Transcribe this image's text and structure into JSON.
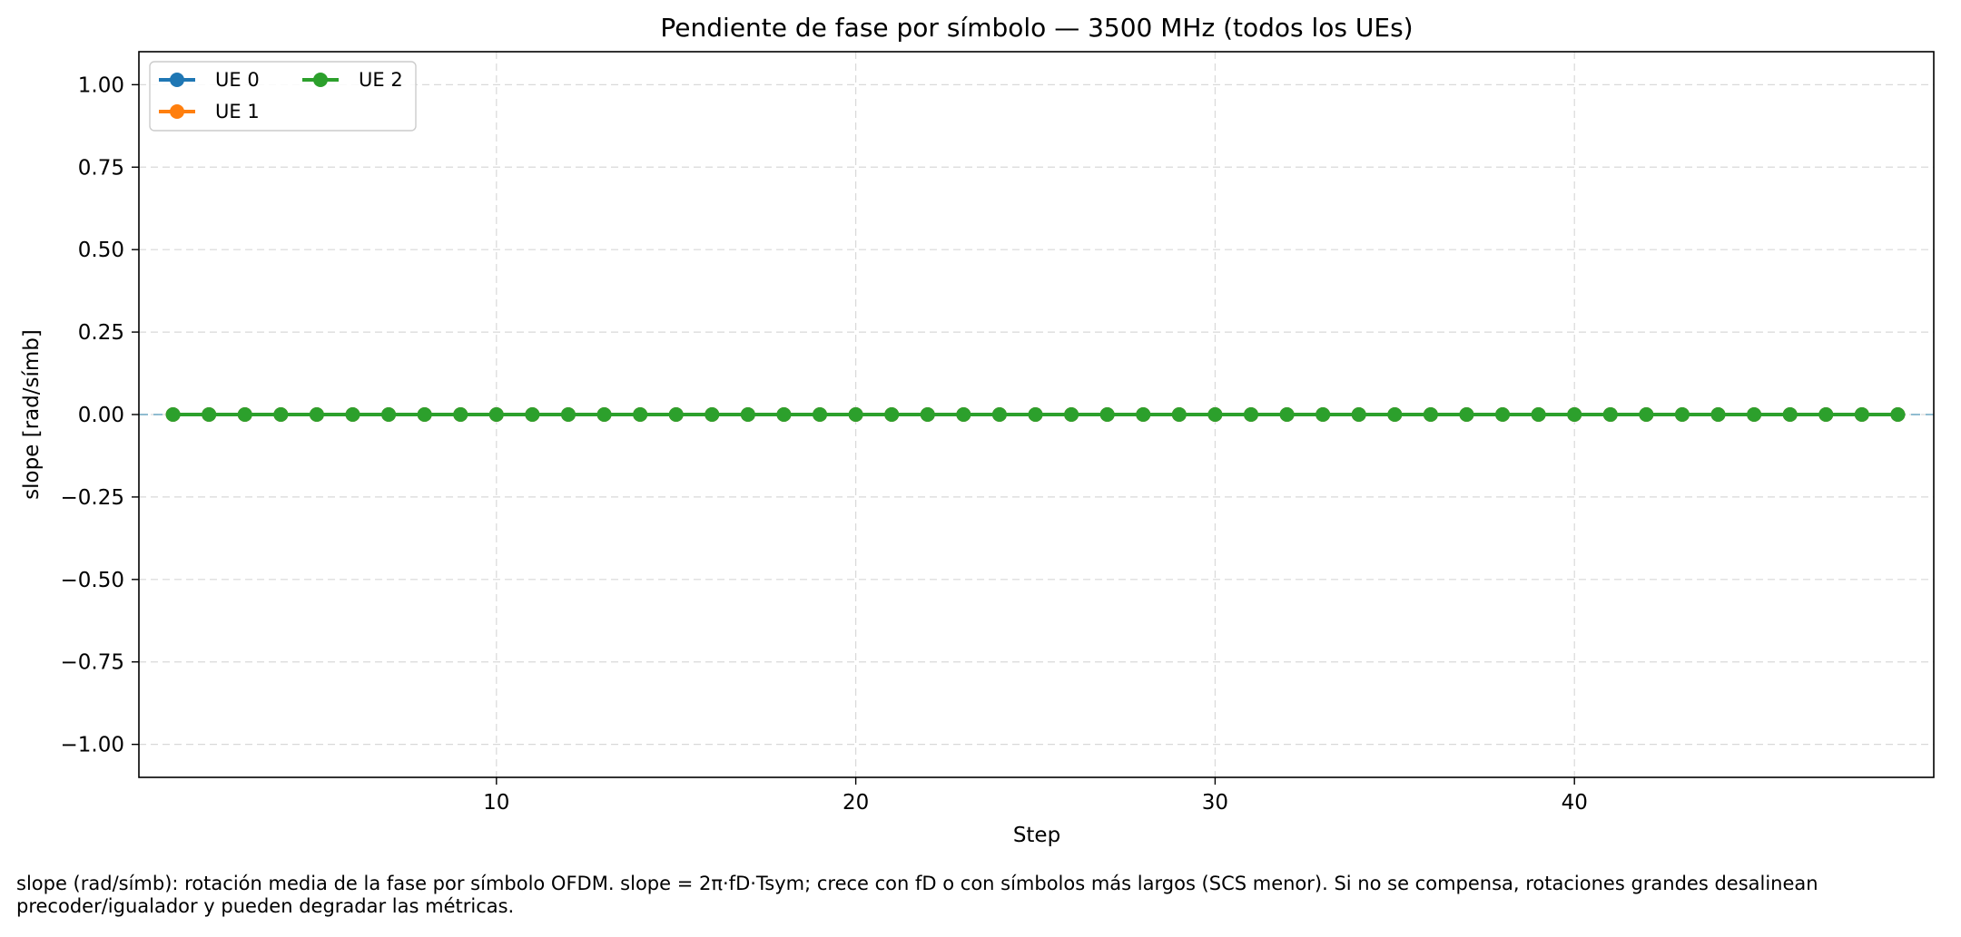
{
  "chart_data": {
    "type": "line",
    "title": "Pendiente de fase por símbolo — 3500 MHz (todos los UEs)",
    "xlabel": "Step",
    "ylabel": "slope [rad/símb]",
    "xlim": [
      0.05,
      50
    ],
    "ylim": [
      -1.1,
      1.1
    ],
    "xticks": [
      10,
      20,
      30,
      40
    ],
    "yticks": [
      -1.0,
      -0.75,
      -0.5,
      -0.25,
      0.0,
      0.25,
      0.5,
      0.75,
      1.0
    ],
    "ytick_labels": [
      "−1.00",
      "−0.75",
      "−0.50",
      "−0.25",
      "0.00",
      "0.25",
      "0.50",
      "0.75",
      "1.00"
    ],
    "grid": true,
    "legend_position": "top-left",
    "reference_line": {
      "y": 0.0,
      "style": "dashed",
      "color": "#6fa8c4"
    },
    "x": [
      1,
      2,
      3,
      4,
      5,
      6,
      7,
      8,
      9,
      10,
      11,
      12,
      13,
      14,
      15,
      16,
      17,
      18,
      19,
      20,
      21,
      22,
      23,
      24,
      25,
      26,
      27,
      28,
      29,
      30,
      31,
      32,
      33,
      34,
      35,
      36,
      37,
      38,
      39,
      40,
      41,
      42,
      43,
      44,
      45,
      46,
      47,
      48,
      49
    ],
    "series": [
      {
        "name": "UE 0",
        "color": "#1f77b4",
        "values": [
          0,
          0,
          0,
          0,
          0,
          0,
          0,
          0,
          0,
          0,
          0,
          0,
          0,
          0,
          0,
          0,
          0,
          0,
          0,
          0,
          0,
          0,
          0,
          0,
          0,
          0,
          0,
          0,
          0,
          0,
          0,
          0,
          0,
          0,
          0,
          0,
          0,
          0,
          0,
          0,
          0,
          0,
          0,
          0,
          0,
          0,
          0,
          0,
          0
        ]
      },
      {
        "name": "UE 1",
        "color": "#ff7f0e",
        "values": [
          0,
          0,
          0,
          0,
          0,
          0,
          0,
          0,
          0,
          0,
          0,
          0,
          0,
          0,
          0,
          0,
          0,
          0,
          0,
          0,
          0,
          0,
          0,
          0,
          0,
          0,
          0,
          0,
          0,
          0,
          0,
          0,
          0,
          0,
          0,
          0,
          0,
          0,
          0,
          0,
          0,
          0,
          0,
          0,
          0,
          0,
          0,
          0,
          0
        ]
      },
      {
        "name": "UE 2",
        "color": "#2ca02c",
        "values": [
          0,
          0,
          0,
          0,
          0,
          0,
          0,
          0,
          0,
          0,
          0,
          0,
          0,
          0,
          0,
          0,
          0,
          0,
          0,
          0,
          0,
          0,
          0,
          0,
          0,
          0,
          0,
          0,
          0,
          0,
          0,
          0,
          0,
          0,
          0,
          0,
          0,
          0,
          0,
          0,
          0,
          0,
          0,
          0,
          0,
          0,
          0,
          0,
          0
        ]
      }
    ]
  },
  "caption": {
    "line1": "slope (rad/símb): rotación media de la fase por símbolo OFDM. slope = 2π·fD·Tsym; crece con fD o con símbolos más largos (SCS menor). Si no se compensa, rotaciones grandes desalinean",
    "line2": "precoder/igualador y pueden degradar las métricas."
  }
}
